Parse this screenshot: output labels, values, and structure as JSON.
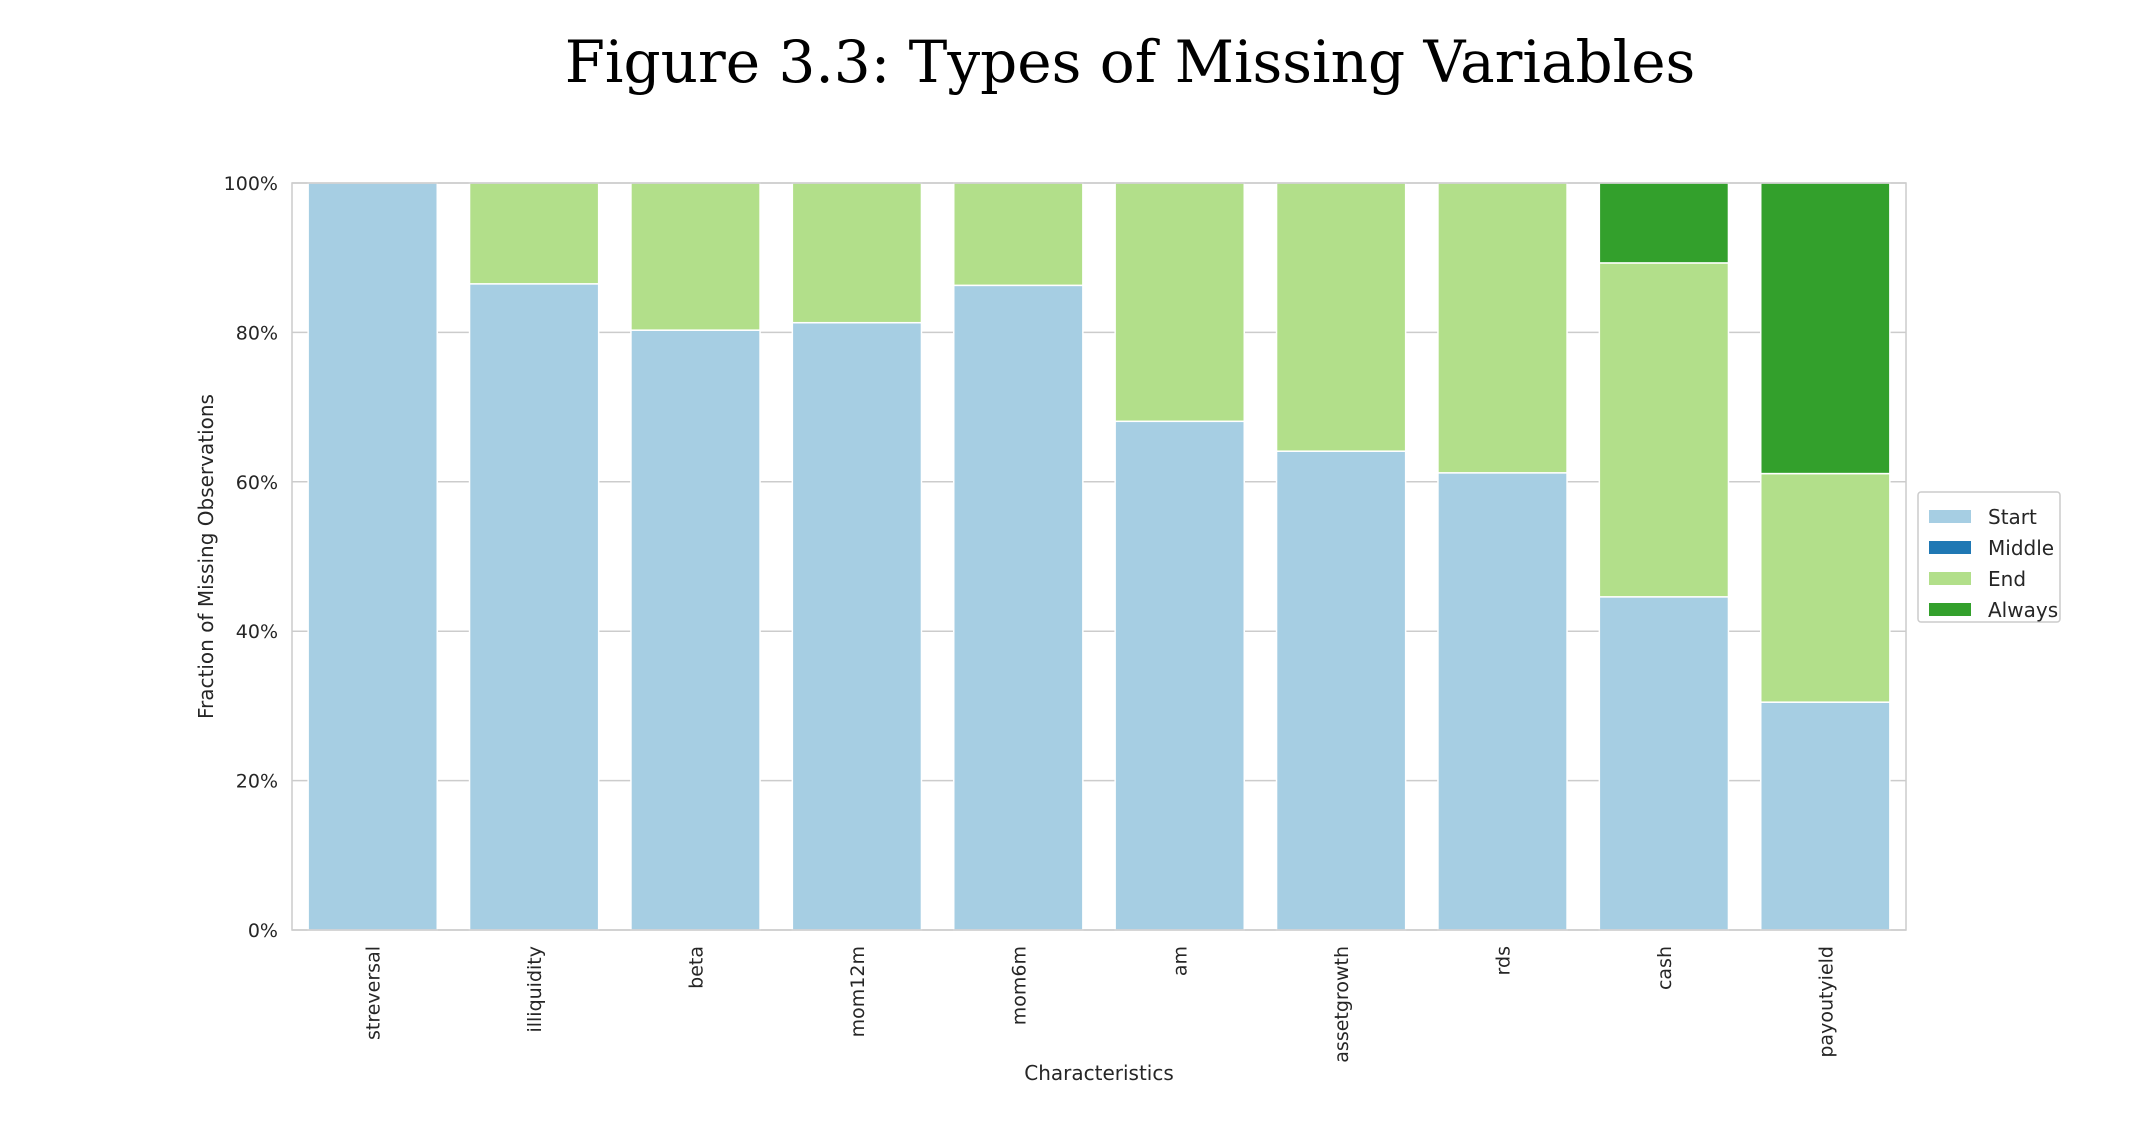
{
  "chart_data": {
    "type": "bar",
    "stacked": true,
    "title": "Figure 3.3: Types of Missing Variables",
    "xlabel": "Characteristics",
    "ylabel": "Fraction of Missing Observations",
    "ylim": [
      0,
      100
    ],
    "yticks": [
      "0%",
      "20%",
      "40%",
      "60%",
      "80%",
      "100%"
    ],
    "ytick_values": [
      0,
      20,
      40,
      60,
      80,
      100
    ],
    "grid": true,
    "legend_placement": "center-right",
    "categories": [
      "streversal",
      "illiquidity",
      "beta",
      "mom12m",
      "mom6m",
      "am",
      "assetgrowth",
      "rds",
      "cash",
      "payoutyield"
    ],
    "series": [
      {
        "name": "Start",
        "color": "#a6cee3",
        "values": [
          100,
          86.5,
          80.3,
          81.3,
          86.3,
          68.1,
          64.1,
          61.2,
          44.6,
          30.5
        ]
      },
      {
        "name": "Middle",
        "color": "#1f78b4",
        "values": [
          0,
          0,
          0,
          0,
          0,
          0,
          0,
          0,
          0,
          0
        ]
      },
      {
        "name": "End",
        "color": "#b2df8a",
        "values": [
          0,
          13.5,
          19.7,
          18.7,
          13.7,
          31.9,
          35.9,
          38.8,
          44.7,
          30.6
        ]
      },
      {
        "name": "Always",
        "color": "#33a02c",
        "values": [
          0,
          0,
          0,
          0,
          0,
          0,
          0,
          0,
          10.7,
          38.9
        ]
      }
    ]
  }
}
